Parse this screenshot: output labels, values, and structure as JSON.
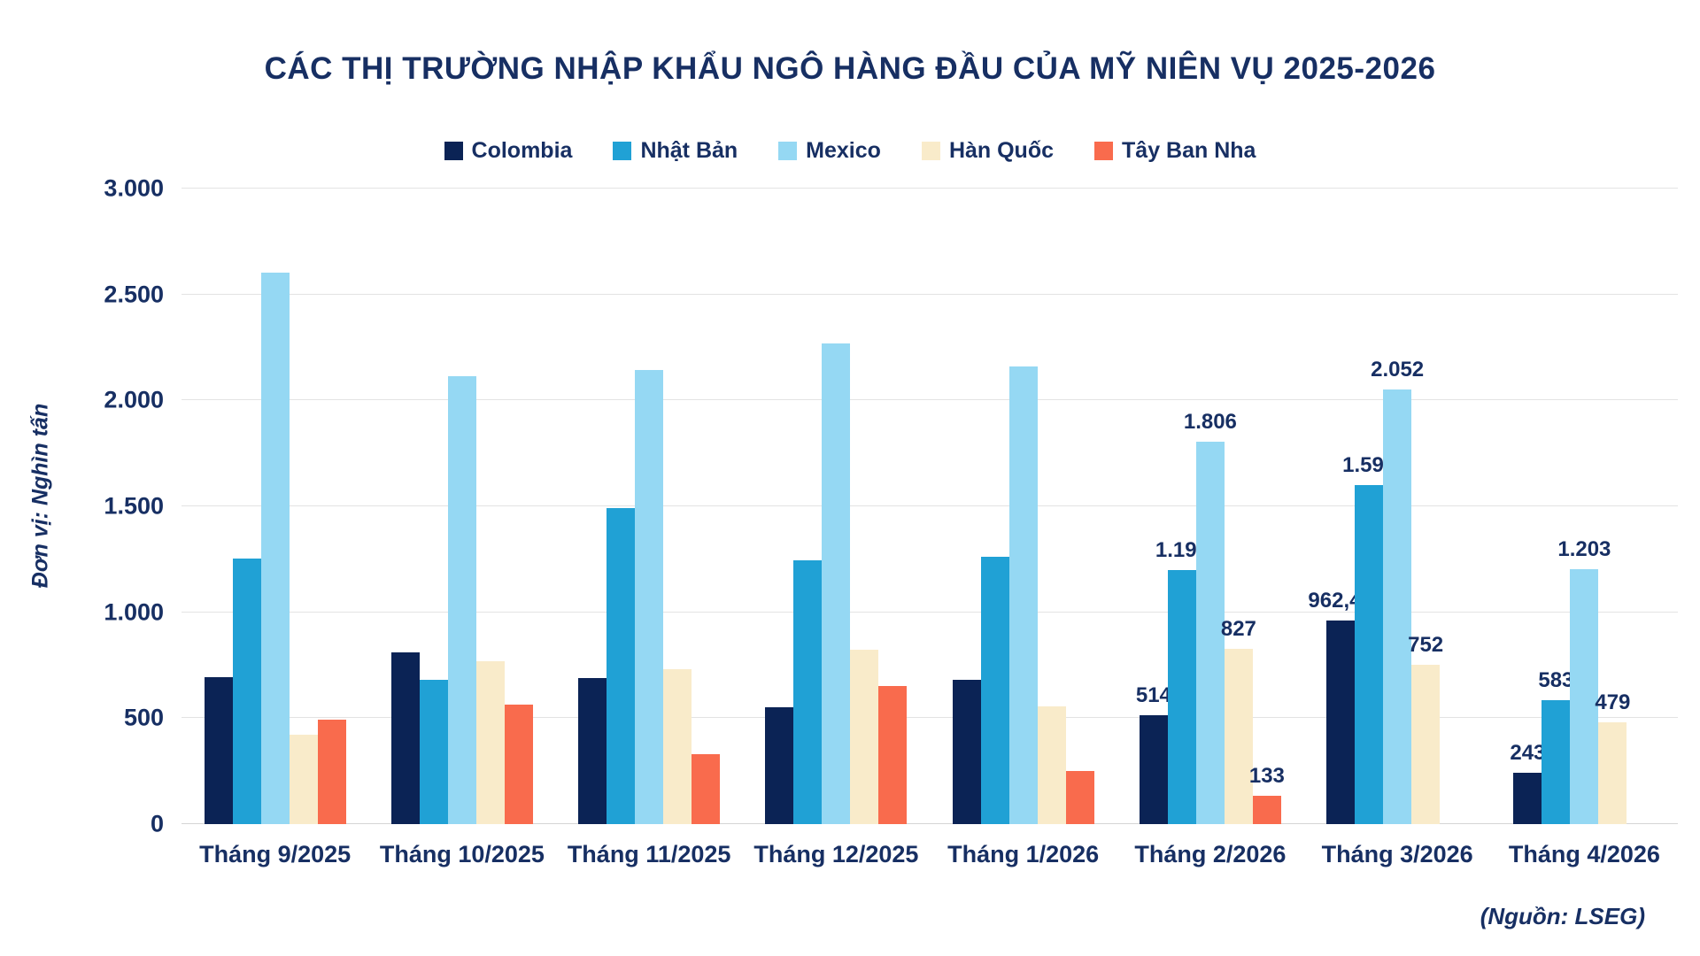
{
  "title": "CÁC THỊ TRƯỜNG NHẬP KHẨU NGÔ HÀNG ĐẦU CỦA MỸ NIÊN VỤ 2025-2026",
  "source": "(Nguồn: LSEG)",
  "colors": {
    "text": "#172f63",
    "gridline": "#e3e3e3",
    "background": "#ffffff"
  },
  "chart_data": {
    "type": "bar",
    "title": "CÁC THỊ TRƯỜNG NHẬP KHẨU NGÔ HÀNG ĐẦU CỦA MỸ NIÊN VỤ 2025-2026",
    "ylabel": "Đơn vị: Nghìn tấn",
    "xlabel": "",
    "ylim": [
      0,
      3000
    ],
    "yticks": [
      "0",
      "500",
      "1.000",
      "1.500",
      "2.000",
      "2.500",
      "3.000"
    ],
    "grid": true,
    "legend_position": "top",
    "categories": [
      "Tháng 9/2025",
      "Tháng 10/2025",
      "Tháng 11/2025",
      "Tháng 12/2025",
      "Tháng 1/2026",
      "Tháng 2/2026",
      "Tháng 3/2026",
      "Tháng 4/2026"
    ],
    "series": [
      {
        "name": "Colombia",
        "color": "#0b2355",
        "values": [
          695,
          810,
          690,
          550,
          680,
          514,
          962.44,
          243
        ],
        "labels": [
          null,
          null,
          null,
          null,
          null,
          "514",
          "962,44",
          "243"
        ]
      },
      {
        "name": "Nhật Bản",
        "color": "#20a1d5",
        "values": [
          1255,
          680,
          1490,
          1245,
          1260,
          1199,
          1599,
          583
        ],
        "labels": [
          null,
          null,
          null,
          null,
          null,
          "1.199",
          "1.599",
          "583"
        ]
      },
      {
        "name": "Mexico",
        "color": "#95d8f3",
        "values": [
          2605,
          2115,
          2145,
          2270,
          2160,
          1806,
          2052,
          1203
        ],
        "labels": [
          null,
          null,
          null,
          null,
          null,
          "1.806",
          "2.052",
          "1.203"
        ]
      },
      {
        "name": "Hàn Quốc",
        "color": "#f9ebca",
        "values": [
          420,
          770,
          730,
          825,
          555,
          827,
          752,
          479
        ],
        "labels": [
          null,
          null,
          null,
          null,
          null,
          "827",
          "752",
          "479"
        ]
      },
      {
        "name": "Tây Ban Nha",
        "color": "#f96b4d",
        "values": [
          495,
          565,
          330,
          650,
          250,
          133,
          null,
          null
        ],
        "labels": [
          null,
          null,
          null,
          null,
          null,
          "133",
          null,
          null
        ]
      }
    ]
  }
}
